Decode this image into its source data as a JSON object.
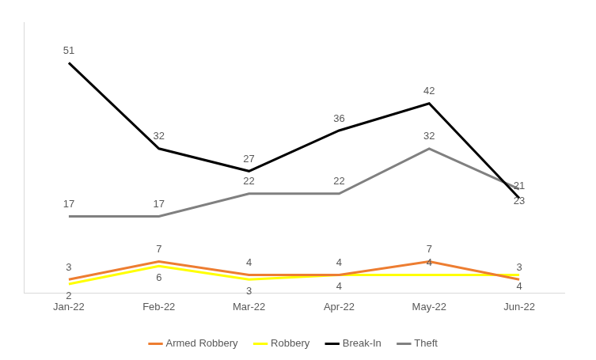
{
  "chart_data": {
    "type": "line",
    "categories": [
      "Jan-22",
      "Feb-22",
      "Mar-22",
      "Apr-22",
      "May-22",
      "Jun-22"
    ],
    "series": [
      {
        "name": "Armed Robbery",
        "color": "#ED7D31",
        "values": [
          3,
          7,
          4,
          4,
          7,
          3
        ]
      },
      {
        "name": "Robbery",
        "color": "#FFFF00",
        "values": [
          2,
          6,
          3,
          4,
          4,
          4
        ]
      },
      {
        "name": "Break-In",
        "color": "#000000",
        "values": [
          51,
          32,
          27,
          36,
          42,
          21
        ]
      },
      {
        "name": "Theft",
        "color": "#808080",
        "values": [
          17,
          17,
          22,
          22,
          32,
          23
        ]
      }
    ],
    "ylim": [
      0,
      60
    ],
    "grid": false,
    "legend": "bottom",
    "data_labels": true,
    "tick_labels": "x"
  }
}
